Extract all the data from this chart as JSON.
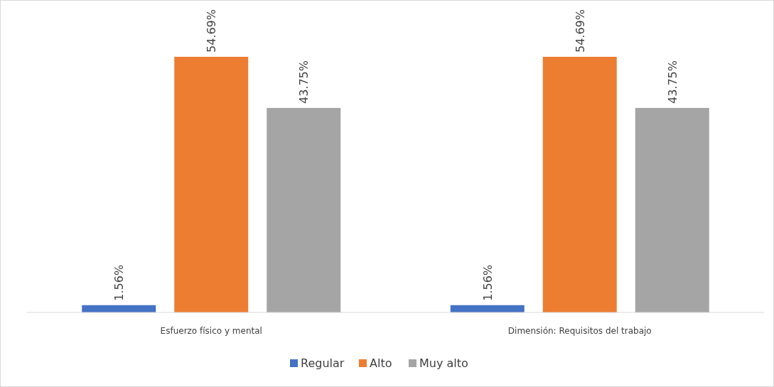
{
  "chart_data": {
    "type": "bar",
    "categories": [
      "Esfuerzo físico y mental",
      "Dimensión: Requisitos del trabajo"
    ],
    "series": [
      {
        "name": "Regular",
        "color": "#4472c4",
        "values": [
          1.56,
          1.56
        ],
        "value_labels": [
          "1.56%",
          "1.56%"
        ]
      },
      {
        "name": "Alto",
        "color": "#ed7d31",
        "values": [
          54.69,
          54.69
        ],
        "value_labels": [
          "54.69%",
          "54.69%"
        ]
      },
      {
        "name": "Muy alto",
        "color": "#a5a5a5",
        "values": [
          43.75,
          43.75
        ],
        "value_labels": [
          "43.75%",
          "43.75%"
        ]
      }
    ],
    "legend": "bottom"
  }
}
